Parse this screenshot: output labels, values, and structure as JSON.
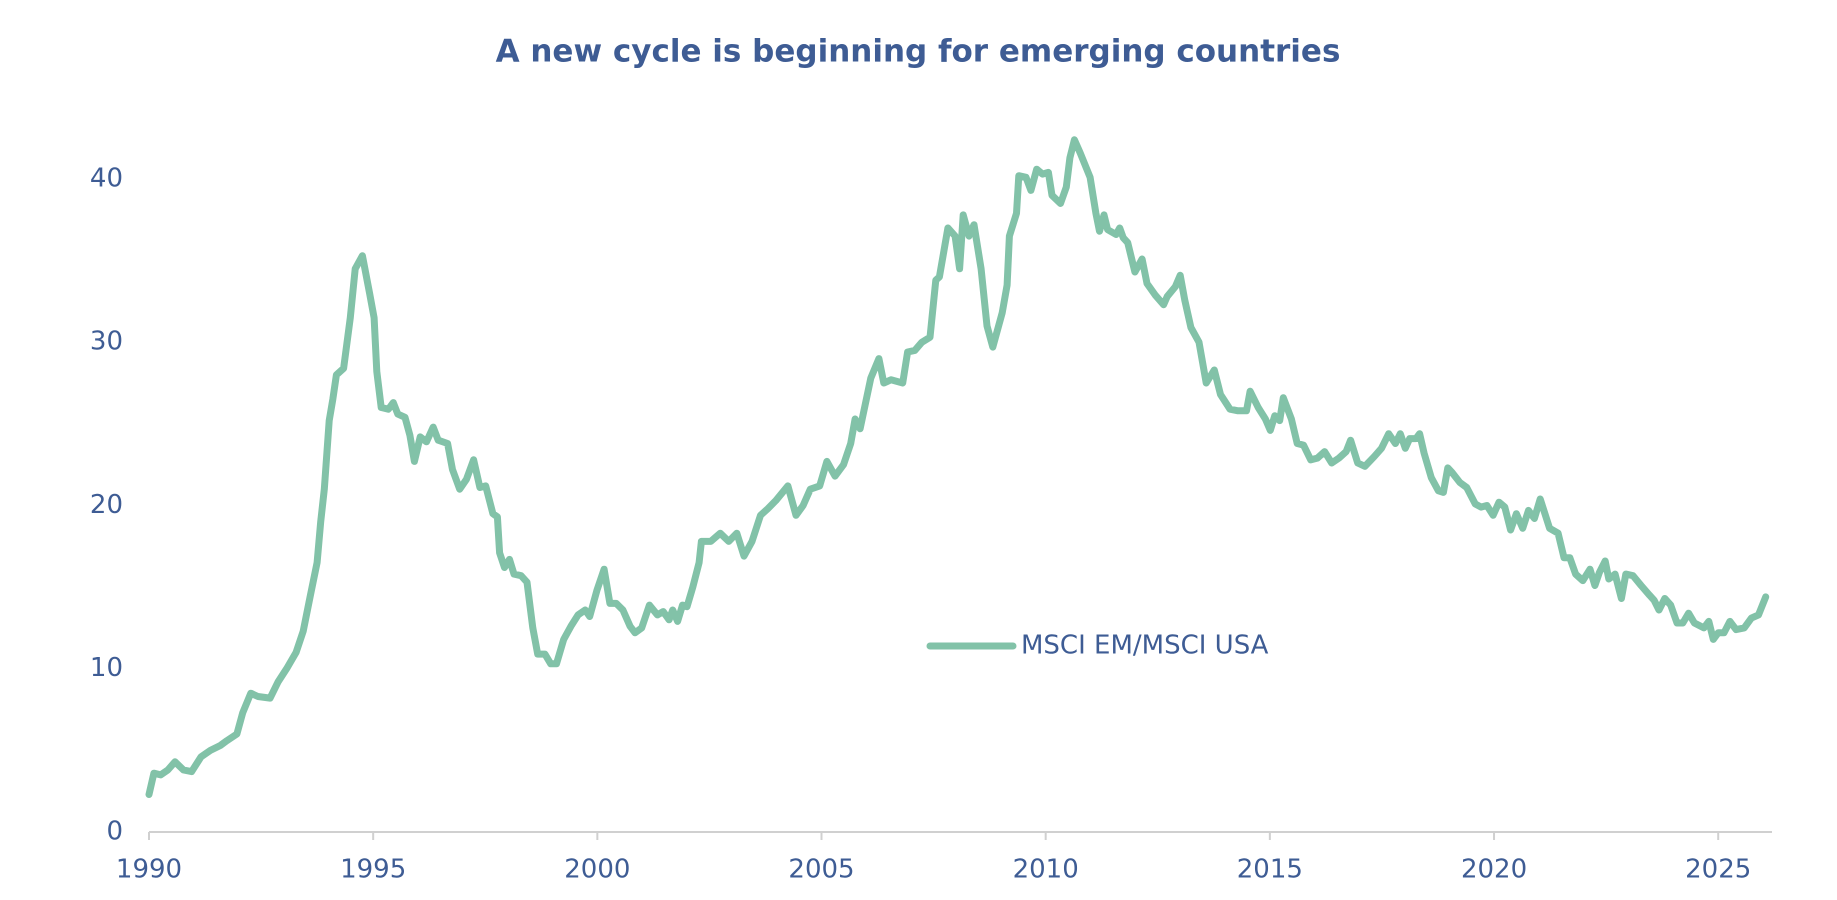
{
  "chart_data": {
    "type": "line",
    "title": "A new cycle is beginning for emerging countries",
    "legend": "center-right",
    "grid": false,
    "xlim": [
      1990,
      2026.2
    ],
    "xticks": [
      1990,
      1995,
      2000,
      2005,
      2010,
      2015,
      2020,
      2025
    ],
    "ylim": [
      0,
      43
    ],
    "yticks": [
      0,
      10,
      20,
      30,
      40
    ],
    "x": [
      1990.0,
      1990.11,
      1990.26,
      1990.42,
      1990.58,
      1990.77,
      1990.95,
      1991.16,
      1991.37,
      1991.59,
      1991.74,
      1991.96,
      1992.09,
      1992.27,
      1992.43,
      1992.7,
      1992.88,
      1993.07,
      1993.28,
      1993.44,
      1993.6,
      1993.75,
      1993.83,
      1993.91,
      1994.02,
      1994.1,
      1994.18,
      1994.34,
      1994.49,
      1994.6,
      1994.76,
      1994.92,
      1995.02,
      1995.08,
      1995.18,
      1995.34,
      1995.45,
      1995.55,
      1995.71,
      1995.82,
      1995.92,
      1996.05,
      1996.19,
      1996.34,
      1996.45,
      1996.66,
      1996.77,
      1996.93,
      1997.08,
      1997.24,
      1997.38,
      1997.51,
      1997.67,
      1997.77,
      1997.82,
      1997.93,
      1998.04,
      1998.14,
      1998.3,
      1998.43,
      1998.56,
      1998.67,
      1998.83,
      1998.96,
      1999.09,
      1999.25,
      1999.41,
      1999.57,
      1999.73,
      1999.83,
      1999.99,
      2000.15,
      2000.28,
      2000.42,
      2000.57,
      2000.73,
      2000.84,
      2000.99,
      2001.16,
      2001.34,
      2001.47,
      2001.6,
      2001.68,
      2001.79,
      2001.9,
      2002.0,
      2002.13,
      2002.27,
      2002.32,
      2002.53,
      2002.74,
      2002.93,
      2003.11,
      2003.27,
      2003.45,
      2003.64,
      2003.8,
      2003.98,
      2004.25,
      2004.43,
      2004.59,
      2004.75,
      2004.96,
      2005.12,
      2005.3,
      2005.49,
      2005.65,
      2005.75,
      2005.86,
      2006.1,
      2006.28,
      2006.39,
      2006.55,
      2006.81,
      2006.92,
      2007.08,
      2007.24,
      2007.42,
      2007.55,
      2007.63,
      2007.82,
      2007.98,
      2008.08,
      2008.16,
      2008.29,
      2008.4,
      2008.56,
      2008.69,
      2008.82,
      2009.03,
      2009.14,
      2009.19,
      2009.35,
      2009.4,
      2009.56,
      2009.67,
      2009.8,
      2009.93,
      2010.06,
      2010.14,
      2010.33,
      2010.46,
      2010.54,
      2010.64,
      2010.77,
      2010.99,
      2011.12,
      2011.2,
      2011.3,
      2011.38,
      2011.57,
      2011.65,
      2011.73,
      2011.83,
      2011.99,
      2012.15,
      2012.26,
      2012.44,
      2012.63,
      2012.71,
      2012.89,
      2013.0,
      2013.1,
      2013.24,
      2013.42,
      2013.58,
      2013.76,
      2013.9,
      2014.11,
      2014.29,
      2014.48,
      2014.56,
      2014.74,
      2014.9,
      2015.01,
      2015.11,
      2015.22,
      2015.3,
      2015.48,
      2015.61,
      2015.75,
      2015.91,
      2016.06,
      2016.22,
      2016.38,
      2016.54,
      2016.7,
      2016.8,
      2016.96,
      2017.12,
      2017.33,
      2017.49,
      2017.65,
      2017.8,
      2017.91,
      2018.02,
      2018.12,
      2018.26,
      2018.34,
      2018.44,
      2018.6,
      2018.76,
      2018.87,
      2018.97,
      2019.07,
      2019.24,
      2019.39,
      2019.58,
      2019.71,
      2019.84,
      2019.98,
      2020.11,
      2020.24,
      2020.37,
      2020.5,
      2020.64,
      2020.77,
      2020.9,
      2021.03,
      2021.24,
      2021.43,
      2021.56,
      2021.69,
      2021.82,
      2021.98,
      2022.14,
      2022.25,
      2022.35,
      2022.48,
      2022.56,
      2022.7,
      2022.84,
      2022.94,
      2023.1,
      2023.28,
      2023.47,
      2023.57,
      2023.68,
      2023.81,
      2023.94,
      2024.08,
      2024.21,
      2024.34,
      2024.47,
      2024.68,
      2024.79,
      2024.89,
      2025.0,
      2025.13,
      2025.26,
      2025.4,
      2025.58,
      2025.74,
      2025.9,
      2026.06
    ],
    "series": [
      {
        "name": "MSCI EM/MSCI USA",
        "color": "#82c2a8",
        "values": [
          2.3,
          3.6,
          3.5,
          3.8,
          4.3,
          3.8,
          3.7,
          4.6,
          5.0,
          5.3,
          5.6,
          6.0,
          7.3,
          8.5,
          8.3,
          8.2,
          9.2,
          10,
          11,
          12.3,
          14.5,
          16.5,
          19.0,
          21,
          25.2,
          26.5,
          28,
          28.4,
          31.5,
          34.5,
          35.3,
          33,
          31.5,
          28.2,
          26,
          25.9,
          26.3,
          25.6,
          25.4,
          24.3,
          22.7,
          24.2,
          23.9,
          24.8,
          24,
          23.8,
          22.2,
          21,
          21.6,
          22.8,
          21.1,
          21.2,
          19.5,
          19.3,
          17.1,
          16.2,
          16.7,
          15.8,
          15.7,
          15.3,
          12.5,
          10.9,
          10.9,
          10.3,
          10.3,
          11.8,
          12.6,
          13.3,
          13.6,
          13.2,
          14.8,
          16.1,
          14,
          14,
          13.6,
          12.6,
          12.2,
          12.5,
          13.9,
          13.3,
          13.5,
          13,
          13.6,
          12.9,
          13.9,
          13.8,
          15,
          16.5,
          17.8,
          17.8,
          18.3,
          17.8,
          18.3,
          16.9,
          17.8,
          19.4,
          19.8,
          20.3,
          21.2,
          19.4,
          20,
          21,
          21.2,
          22.7,
          21.8,
          22.5,
          23.8,
          25.3,
          24.7,
          27.8,
          29,
          27.5,
          27.7,
          27.5,
          29.4,
          29.5,
          30,
          30.3,
          33.8,
          34,
          37,
          36.5,
          34.5,
          37.8,
          36.5,
          37.2,
          34.5,
          31,
          29.7,
          31.8,
          33.5,
          36.5,
          37.9,
          40.2,
          40.1,
          39.3,
          40.6,
          40.3,
          40.4,
          39,
          38.5,
          39.5,
          41.3,
          42.4,
          41.6,
          40.1,
          37.9,
          36.8,
          37.8,
          36.9,
          36.6,
          37,
          36.4,
          36.1,
          34.3,
          35.1,
          33.6,
          32.9,
          32.3,
          32.8,
          33.4,
          34.1,
          32.6,
          30.9,
          30,
          27.5,
          28.3,
          26.8,
          25.9,
          25.8,
          25.8,
          27,
          26,
          25.3,
          24.6,
          25.5,
          25.2,
          26.6,
          25.3,
          23.8,
          23.7,
          22.8,
          22.9,
          23.3,
          22.6,
          22.9,
          23.3,
          24,
          22.6,
          22.4,
          23,
          23.5,
          24.4,
          23.8,
          24.4,
          23.5,
          24.1,
          24.1,
          24.4,
          23.2,
          21.7,
          20.9,
          20.8,
          22.3,
          22,
          21.4,
          21.1,
          20.1,
          19.9,
          20,
          19.4,
          20.2,
          19.9,
          18.5,
          19.5,
          18.6,
          19.7,
          19.2,
          20.4,
          18.6,
          18.3,
          16.8,
          16.8,
          15.8,
          15.4,
          16.1,
          15.1,
          15.9,
          16.6,
          15.5,
          15.8,
          14.3,
          15.8,
          15.7,
          15.1,
          14.5,
          14.2,
          13.6,
          14.3,
          13.9,
          12.8,
          12.8,
          13.4,
          12.8,
          12.5,
          12.9,
          11.8,
          12.2,
          12.2,
          12.9,
          12.4,
          12.5,
          13.1,
          13.3,
          14.4
        ]
      }
    ]
  }
}
